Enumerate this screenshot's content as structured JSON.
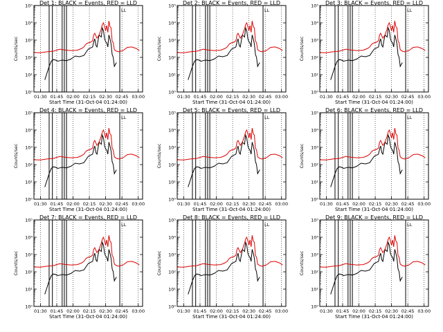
{
  "chart_data": {
    "type": "line",
    "panels": [
      {
        "title": "Det 1: BLACK = Events, RED = LLD"
      },
      {
        "title": "Det 2: BLACK = Events, RED = LLD"
      },
      {
        "title": "Det 3: BLACK = Events, RED = LLD"
      },
      {
        "title": "Det 4: BLACK = Events, RED = LLD"
      },
      {
        "title": "Det 5: BLACK = Events, RED = LLD"
      },
      {
        "title": "Det 6: BLACK = Events, RED = LLD"
      },
      {
        "title": "Det 7: BLACK = Events, RED = LLD"
      },
      {
        "title": "Det 8: BLACK = Events, RED = LLD"
      },
      {
        "title": "Det 9: BLACK = Events, RED = LLD"
      }
    ],
    "xlabel": "Start Time (31-Oct-04 01:24:00)",
    "ylabel": "Counts/sec",
    "xticks": [
      "01:30",
      "01:45",
      "02:00",
      "02:15",
      "02:30",
      "02:45",
      "03:00"
    ],
    "yticks": [
      "10⁰",
      "10¹",
      "10²",
      "10³",
      "10⁴",
      "10⁵"
    ],
    "y_scale": "log",
    "ylim": [
      1,
      100000
    ],
    "xlim_minutes_after_start": [
      0,
      100
    ],
    "series": [
      {
        "color": "#000000",
        "minutes": [
          10,
          12,
          14,
          16,
          18,
          20,
          22,
          24,
          26,
          30,
          34,
          38,
          42,
          46,
          48,
          50,
          52,
          54,
          55,
          56,
          57,
          58,
          59,
          60,
          62,
          63,
          64,
          65,
          66,
          67,
          68,
          69,
          70,
          71,
          72,
          73,
          74,
          75,
          76
        ],
        "values": [
          5,
          12,
          30,
          60,
          75,
          70,
          60,
          65,
          70,
          65,
          80,
          120,
          110,
          130,
          200,
          300,
          350,
          400,
          800,
          1200,
          500,
          400,
          900,
          2000,
          1500,
          5000,
          3500,
          1200,
          800,
          700,
          400,
          2000,
          1200,
          600,
          150,
          100,
          30,
          40,
          50
        ]
      },
      {
        "color": "#dd0000",
        "minutes": [
          0,
          6,
          12,
          18,
          24,
          28,
          34,
          40,
          44,
          46,
          48,
          50,
          52,
          54,
          55,
          56,
          58,
          60,
          62,
          63,
          64,
          65,
          66,
          67,
          68,
          69,
          70,
          71,
          72,
          73,
          74,
          76,
          78,
          82,
          86,
          90,
          94,
          97
        ],
        "values": [
          190,
          185,
          210,
          230,
          300,
          270,
          250,
          260,
          330,
          400,
          600,
          700,
          750,
          900,
          2000,
          2500,
          1300,
          2000,
          4500,
          8000,
          10000,
          6000,
          3500,
          7000,
          2800,
          13000,
          6000,
          5000,
          900,
          700,
          280,
          230,
          210,
          250,
          380,
          400,
          330,
          250
        ]
      }
    ],
    "vertical_markers_minutes": [
      0,
      14,
      17,
      26,
      28,
      30,
      79
    ],
    "marker_label": "LL"
  }
}
